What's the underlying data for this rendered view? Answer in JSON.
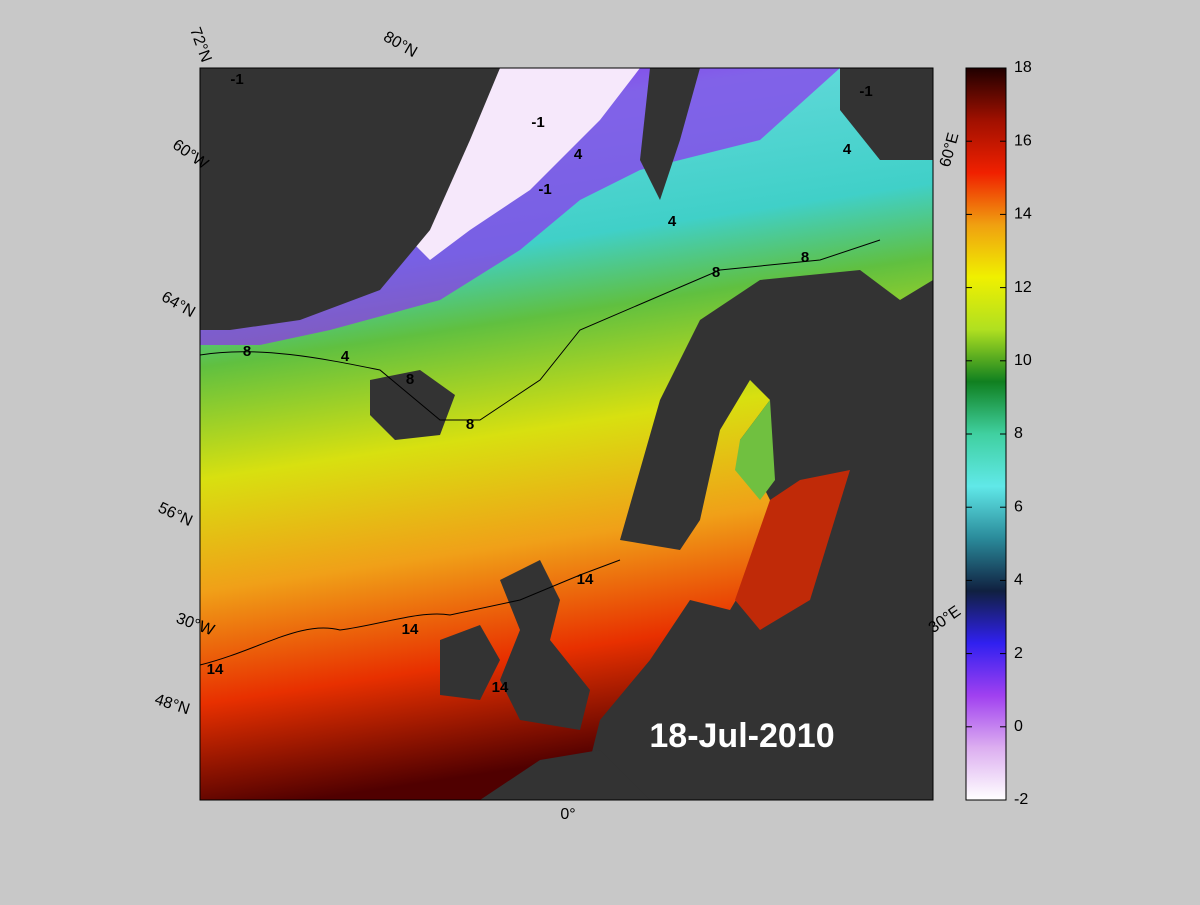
{
  "map": {
    "date": "18-Jul-2010",
    "grid_labels": [
      "72°N",
      "80°N",
      "60°W",
      "64°N",
      "56°N",
      "30°W",
      "48°N",
      "0°",
      "30°E",
      "60°E"
    ],
    "contour_labels": [
      -1,
      -1,
      -1,
      -1,
      4,
      4,
      4,
      4,
      8,
      8,
      8,
      8,
      8,
      14,
      14,
      14,
      14
    ]
  },
  "colorbar": {
    "lim": [
      -2,
      18
    ],
    "ticks": [
      -2,
      0,
      2,
      4,
      6,
      8,
      10,
      12,
      14,
      16,
      18
    ],
    "colors": [
      "#ffffff",
      "#dcaef0",
      "#a040f0",
      "#3020f0",
      "#102040",
      "#2a8a9a",
      "#60e8e8",
      "#40d0a0",
      "#108020",
      "#b0e020",
      "#f0f000",
      "#f0a010",
      "#f02000",
      "#a01000",
      "#200000"
    ]
  }
}
